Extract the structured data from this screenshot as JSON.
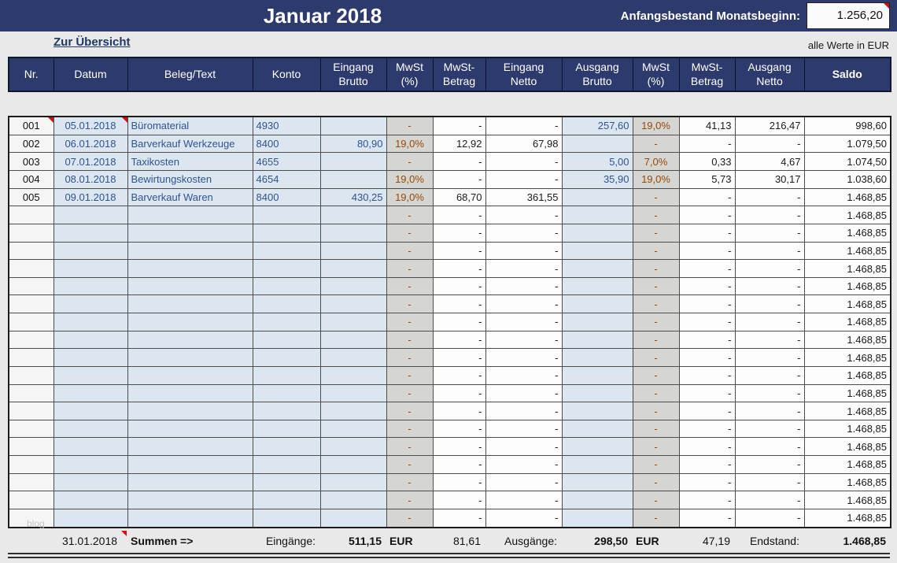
{
  "header": {
    "title": "Januar 2018",
    "opening_label": "Anfangsbestand Monatsbeginn:",
    "opening_value": "1.256,20"
  },
  "subheader": {
    "back_link": "Zur Übersicht",
    "unit_note": "alle Werte in EUR"
  },
  "table": {
    "columns": [
      "Nr.",
      "Datum",
      "Beleg/Text",
      "Konto",
      "Eingang\nBrutto",
      "MwSt\n(%)",
      "MwSt-\nBetrag",
      "Eingang\nNetto",
      "Ausgang\nBrutto",
      "MwSt\n(%)",
      "MwSt-\nBetrag",
      "Ausgang\nNetto",
      "Saldo"
    ],
    "rows": [
      [
        "001",
        "05.01.2018",
        "Büromaterial",
        "4930",
        "",
        "-",
        "-",
        "-",
        "257,60",
        "19,0%",
        "41,13",
        "216,47",
        "998,60"
      ],
      [
        "002",
        "06.01.2018",
        "Barverkauf Werkzeuge",
        "8400",
        "80,90",
        "19,0%",
        "12,92",
        "67,98",
        "",
        "-",
        "-",
        "-",
        "1.079,50"
      ],
      [
        "003",
        "07.01.2018",
        "Taxikosten",
        "4655",
        "",
        "-",
        "-",
        "-",
        "5,00",
        "7,0%",
        "0,33",
        "4,67",
        "1.074,50"
      ],
      [
        "004",
        "08.01.2018",
        "Bewirtungskosten",
        "4654",
        "",
        "19,0%",
        "-",
        "-",
        "35,90",
        "19,0%",
        "5,73",
        "30,17",
        "1.038,60"
      ],
      [
        "005",
        "09.01.2018",
        "Barverkauf Waren",
        "8400",
        "430,25",
        "19,0%",
        "68,70",
        "361,55",
        "",
        "-",
        "-",
        "-",
        "1.468,85"
      ]
    ],
    "empty_row": [
      "",
      "",
      "",
      "",
      "",
      "-",
      "-",
      "-",
      "",
      "-",
      "-",
      "-",
      "1.468,85"
    ],
    "empty_row_count": 18
  },
  "summary": {
    "cells": [
      "",
      "31.01.2018",
      "Summen =>",
      "Eingänge:",
      "511,15",
      "EUR",
      "81,61",
      "Ausgänge:",
      "298,50",
      "EUR",
      "47,19",
      "Endstand:",
      "1.468,85"
    ]
  },
  "watermark": "blog",
  "colors": {
    "navy": "#2d3a6d",
    "light_blue_cell": "#dce6f1",
    "gray_cell": "#d5d5d1",
    "brown_text": "#974808",
    "blue_text": "#31538f",
    "comment_marker_red": "#d01010"
  }
}
